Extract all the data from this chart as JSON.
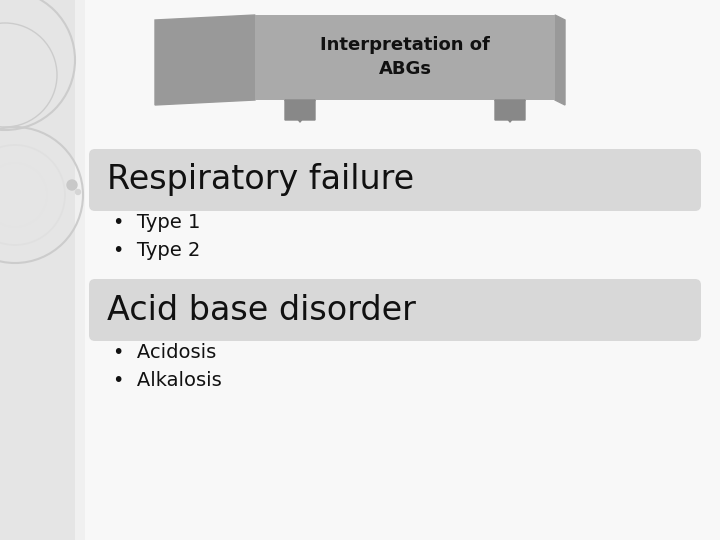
{
  "background_color": "#f0f0f0",
  "main_bg_color": "#f8f8f8",
  "left_panel_color": "#e8e8e8",
  "banner_body_color": "#aaaaaa",
  "banner_wing_color": "#999999",
  "banner_fold_color": "#888888",
  "banner_text_line1": "Interpretation of",
  "banner_text_line2": "ABGs",
  "banner_text_color": "#111111",
  "box_color": "#d8d8d8",
  "box1_text": "Respiratory failure",
  "box2_text": "Acid base disorder",
  "bullet1": [
    "Type 1",
    "Type 2"
  ],
  "bullet2": [
    "Acidosis",
    "Alkalosis"
  ],
  "text_color": "#111111",
  "circle_color": "#d8d8d8",
  "circle_stroke": "#cccccc",
  "small_dot_color": "#c8c8c8"
}
